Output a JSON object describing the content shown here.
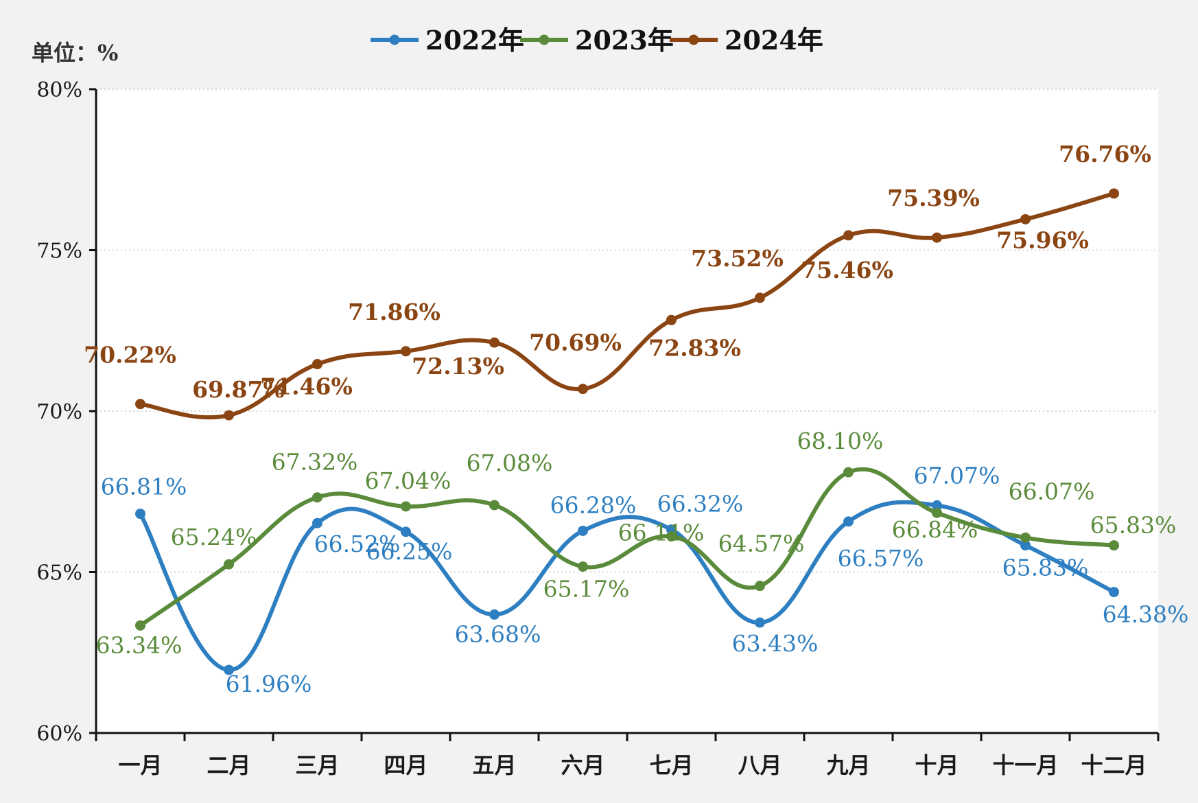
{
  "chart_data": {
    "type": "line",
    "unit_label": "单位：%",
    "categories": [
      "一月",
      "二月",
      "三月",
      "四月",
      "五月",
      "六月",
      "七月",
      "八月",
      "九月",
      "十月",
      "十一月",
      "十二月"
    ],
    "y_ticks": [
      "60%",
      "65%",
      "70%",
      "75%",
      "80%"
    ],
    "ylim": [
      60,
      80
    ],
    "smooth": true,
    "grid": "horizontal dotted",
    "legend_position": "top-center",
    "series": [
      {
        "name": "2022年",
        "color": "#2e7fc1",
        "values": [
          66.81,
          61.96,
          66.52,
          66.25,
          63.68,
          66.28,
          66.32,
          63.43,
          66.57,
          67.07,
          65.83,
          64.38
        ],
        "labels": [
          "66.81%",
          "61.96%",
          "66.52%",
          "66.25%",
          "63.68%",
          "66.28%",
          "66.32%",
          "63.43%",
          "66.57%",
          "67.07%",
          "65.83%",
          "64.38%"
        ]
      },
      {
        "name": "2023年",
        "color": "#5a8b3a",
        "values": [
          63.34,
          65.24,
          67.32,
          67.04,
          67.08,
          65.17,
          66.11,
          64.57,
          68.1,
          66.84,
          66.07,
          65.83
        ],
        "labels": [
          "63.34%",
          "65.24%",
          "67.32%",
          "67.04%",
          "67.08%",
          "65.17%",
          "66.11%",
          "64.57%",
          "68.10%",
          "66.84%",
          "66.07%",
          "65.83%"
        ]
      },
      {
        "name": "2024年",
        "color": "#8b4513",
        "values": [
          70.22,
          69.87,
          71.46,
          71.86,
          72.13,
          70.69,
          72.83,
          73.52,
          75.46,
          75.39,
          75.96,
          76.76
        ],
        "labels": [
          "70.22%",
          "69.87%",
          "71.46%",
          "71.86%",
          "72.13%",
          "70.69%",
          "72.83%",
          "73.52%",
          "75.46%",
          "75.39%",
          "75.96%",
          "76.76%"
        ]
      }
    ]
  }
}
